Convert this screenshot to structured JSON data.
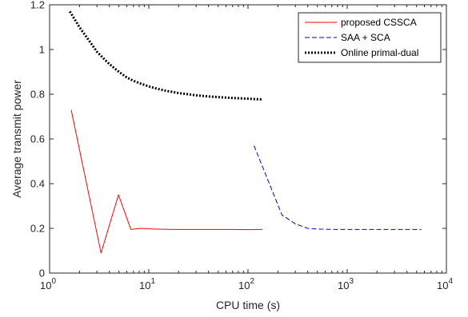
{
  "chart_data": {
    "type": "line",
    "xlabel": "CPU time (s)",
    "ylabel": "Average transmit power",
    "xscale": "log",
    "xlim": [
      1,
      10000
    ],
    "ylim": [
      0,
      1.2
    ],
    "xticks": [
      1,
      10,
      100,
      1000,
      10000
    ],
    "xtick_labels": [
      {
        "base": "10",
        "exp": "0"
      },
      {
        "base": "10",
        "exp": "1"
      },
      {
        "base": "10",
        "exp": "2"
      },
      {
        "base": "10",
        "exp": "3"
      },
      {
        "base": "10",
        "exp": "4"
      }
    ],
    "yticks": [
      0,
      0.2,
      0.4,
      0.6,
      0.8,
      1,
      1.2
    ],
    "ytick_labels": [
      "0",
      "0.2",
      "0.4",
      "0.6",
      "0.8",
      "1",
      "1.2"
    ],
    "grid": false,
    "legend_position": "top-right",
    "series": [
      {
        "name": "proposed CSSCA",
        "color": "#ff0000",
        "style": "solid",
        "x": [
          1.65,
          3.3,
          4.95,
          6.6,
          8.2,
          9.9,
          11.5,
          13.2,
          14.8,
          16.5,
          20,
          25,
          30,
          40,
          50,
          70,
          100,
          140
        ],
        "y": [
          0.73,
          0.09,
          0.35,
          0.195,
          0.2,
          0.198,
          0.197,
          0.196,
          0.196,
          0.195,
          0.195,
          0.195,
          0.195,
          0.195,
          0.195,
          0.195,
          0.194,
          0.195
        ]
      },
      {
        "name": "SAA + SCA",
        "color": "#0000cc",
        "style": "dashed",
        "x": [
          115,
          220,
          300,
          400,
          500,
          600,
          800,
          1000,
          1500,
          2000,
          3000,
          4000,
          5600
        ],
        "y": [
          0.57,
          0.26,
          0.22,
          0.2,
          0.197,
          0.196,
          0.195,
          0.195,
          0.195,
          0.195,
          0.195,
          0.195,
          0.195
        ]
      },
      {
        "name": "Online primal-dual",
        "color": "#000000",
        "style": "dotted",
        "x": [
          1.6,
          2,
          2.5,
          3,
          3.5,
          4,
          5,
          6,
          7,
          8,
          10,
          12,
          15,
          20,
          25,
          30,
          40,
          50,
          60,
          70,
          80,
          100,
          120,
          140
        ],
        "y": [
          1.17,
          1.1,
          1.04,
          0.99,
          0.96,
          0.935,
          0.9,
          0.875,
          0.86,
          0.85,
          0.835,
          0.825,
          0.815,
          0.805,
          0.8,
          0.795,
          0.79,
          0.787,
          0.785,
          0.783,
          0.782,
          0.78,
          0.778,
          0.777
        ]
      }
    ]
  }
}
